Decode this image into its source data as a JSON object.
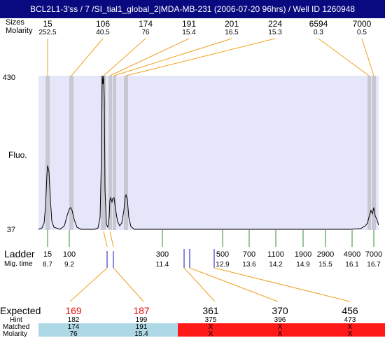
{
  "header": {
    "title": "BCL2L1-3'ss / 7 /SI_tial1_global_2|MDA-MB-231 (2006-07-20 96hrs) / Well ID 1260948"
  },
  "left_labels": {
    "sizes": "Sizes",
    "molarity": "Molarity",
    "y_max": "430",
    "y_min": "37",
    "fluo": "Fluo.",
    "ladder": "Ladder",
    "mig_time": "Mig. time",
    "expected": "Expected",
    "hint": "Hint",
    "matched": "Matched",
    "molarity_bottom": "Molarity"
  },
  "top_peaks": [
    {
      "size": "15",
      "molarity": "252.5"
    },
    {
      "size": "106",
      "molarity": "40.5"
    },
    {
      "size": "174",
      "molarity": "76"
    },
    {
      "size": "191",
      "molarity": "15.4"
    },
    {
      "size": "201",
      "molarity": "16.5"
    },
    {
      "size": "224",
      "molarity": "15.3"
    },
    {
      "size": "6594",
      "molarity": "0.3"
    },
    {
      "size": "7000",
      "molarity": "0.5"
    }
  ],
  "ladder": [
    {
      "size": "15",
      "mig": "8.7"
    },
    {
      "size": "100",
      "mig": "9.2"
    },
    {
      "size": "300",
      "mig": "11.4"
    },
    {
      "size": "500",
      "mig": "12.9"
    },
    {
      "size": "700",
      "mig": "13.6"
    },
    {
      "size": "1100",
      "mig": "14.2"
    },
    {
      "size": "1900",
      "mig": "14.9"
    },
    {
      "size": "2900",
      "mig": "15.5"
    },
    {
      "size": "4900",
      "mig": "16.1"
    },
    {
      "size": "7000",
      "mig": "16.7"
    }
  ],
  "expected": [
    {
      "expected": "169",
      "hint": "182",
      "matched": "174",
      "molarity": "76",
      "status": "matched"
    },
    {
      "expected": "187",
      "hint": "199",
      "matched": "191",
      "molarity": "15.4",
      "status": "matched"
    },
    {
      "expected": "361",
      "hint": "375",
      "matched": "X",
      "molarity": "X",
      "status": "unmatched"
    },
    {
      "expected": "370",
      "hint": "396",
      "matched": "X",
      "molarity": "X",
      "status": "unmatched"
    },
    {
      "expected": "456",
      "hint": "473",
      "matched": "X",
      "molarity": "X",
      "status": "unmatched"
    }
  ],
  "colors": {
    "header_bg": "#0a0a80",
    "plot_bg": "#e6e6fa",
    "peak_band": "#c8c8d2",
    "connector": "#f0a020",
    "ladder_tick": "#2e8b2e",
    "marker_blue": "#1010c0",
    "matched_bg": "#add8e6",
    "unmatched_bg": "#ff1a1a",
    "expected_red": "#e01010"
  }
}
